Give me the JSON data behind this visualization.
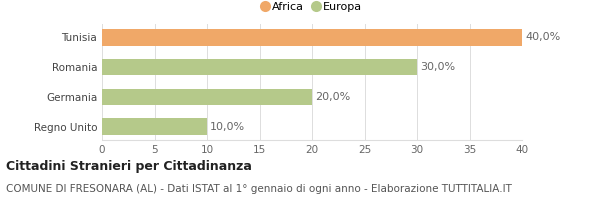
{
  "categories": [
    "Tunisia",
    "Romania",
    "Germania",
    "Regno Unito"
  ],
  "values": [
    40.0,
    30.0,
    20.0,
    10.0
  ],
  "colors": [
    "#f0a868",
    "#b5c98a",
    "#b5c98a",
    "#b5c98a"
  ],
  "legend_labels": [
    "Africa",
    "Europa"
  ],
  "legend_colors": [
    "#f0a868",
    "#b5c98a"
  ],
  "value_labels": [
    "40,0%",
    "30,0%",
    "20,0%",
    "10,0%"
  ],
  "xlim": [
    0,
    40
  ],
  "xticks": [
    0,
    5,
    10,
    15,
    20,
    25,
    30,
    35,
    40
  ],
  "title": "Cittadini Stranieri per Cittadinanza",
  "subtitle": "COMUNE DI FRESONARA (AL) - Dati ISTAT al 1° gennaio di ogni anno - Elaborazione TUTTITALIA.IT",
  "title_fontsize": 9,
  "subtitle_fontsize": 7.5,
  "label_fontsize": 8,
  "tick_fontsize": 7.5,
  "bar_height": 0.55,
  "background_color": "#ffffff",
  "grid_color": "#dddddd"
}
